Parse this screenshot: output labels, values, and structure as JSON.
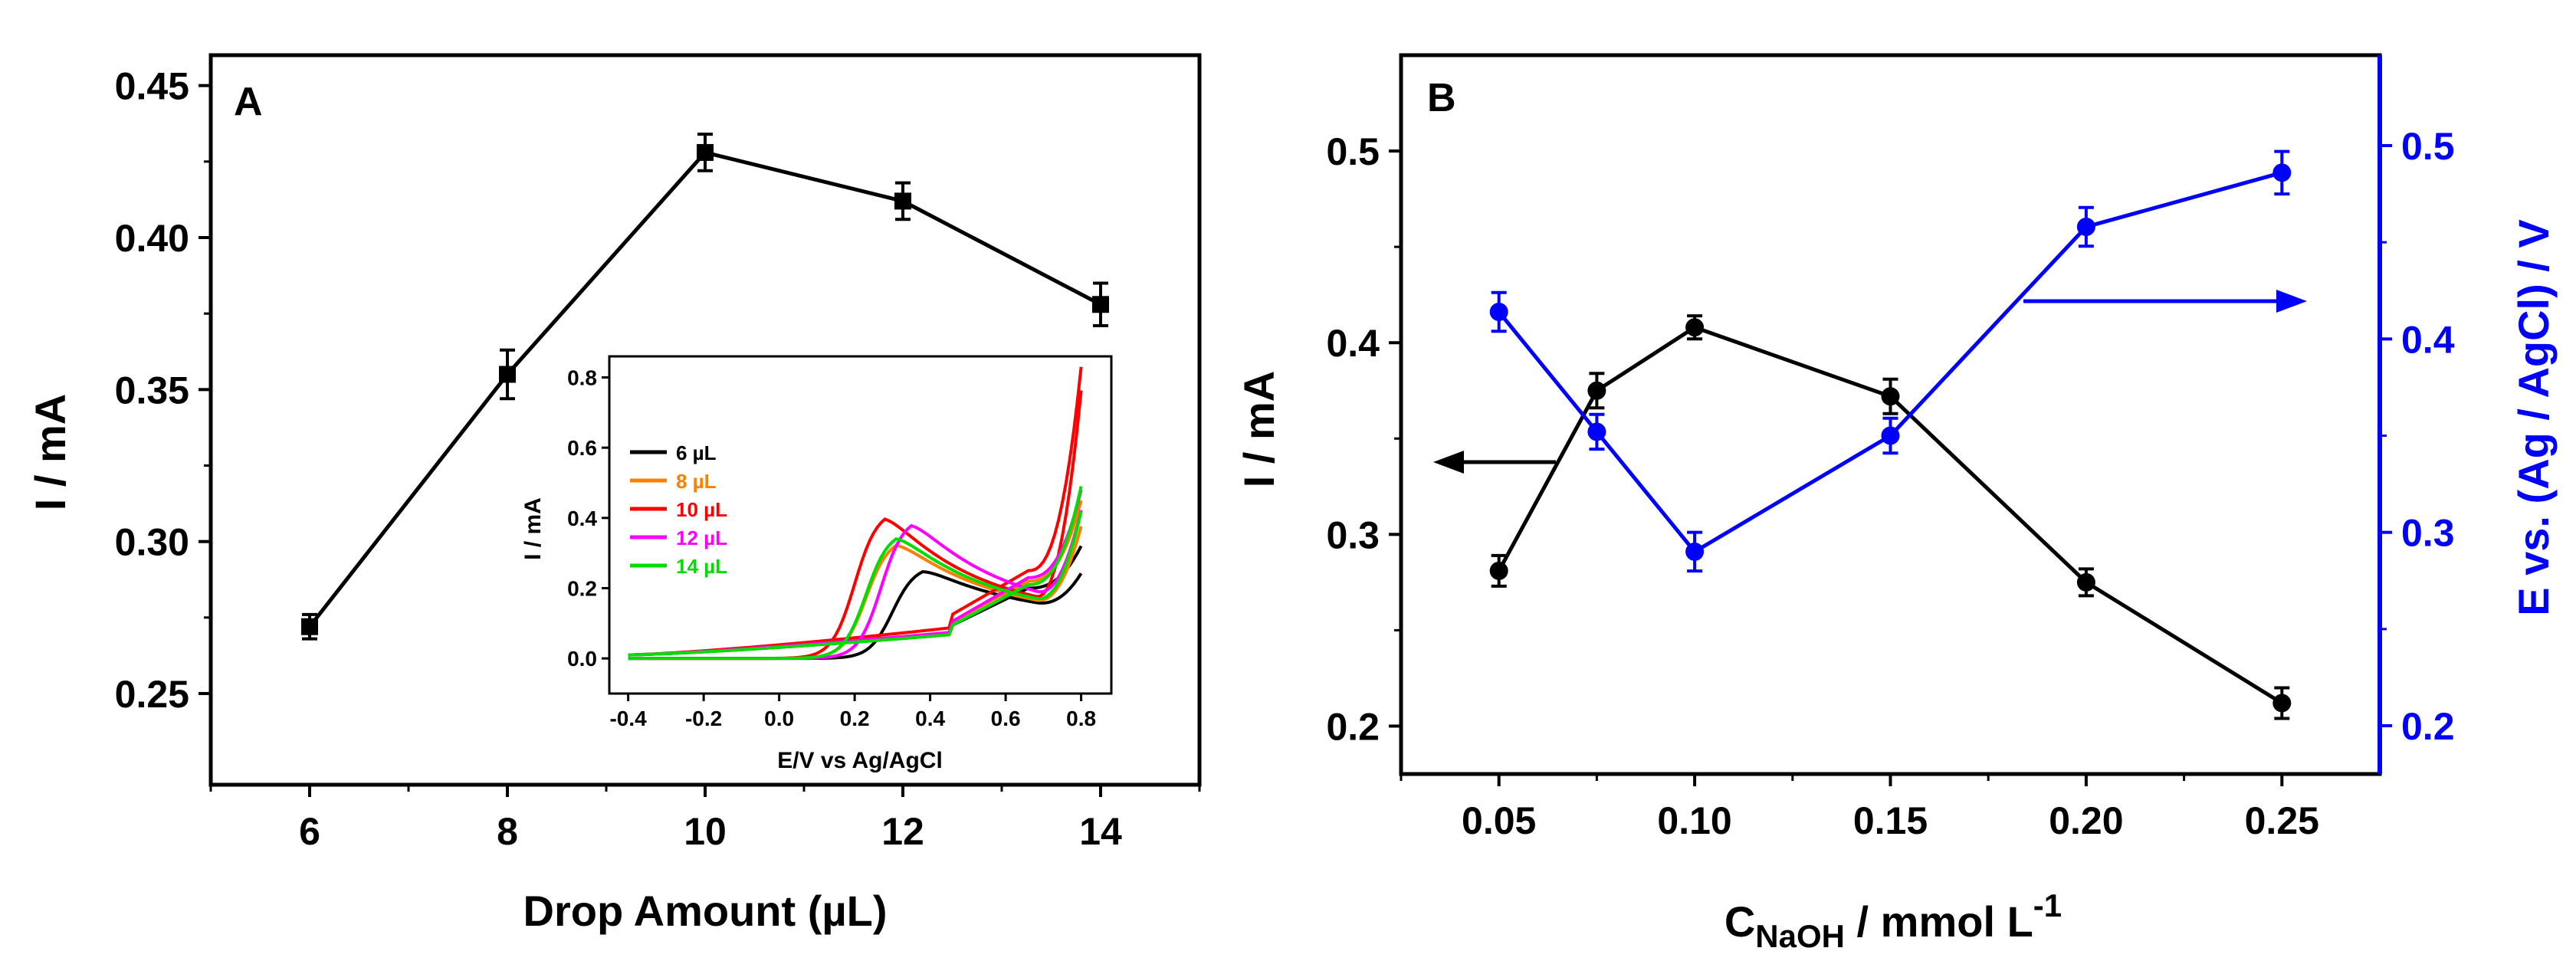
{
  "chart_data": [
    {
      "panel": "A",
      "type": "line",
      "xlabel": "Drop Amount (µL)",
      "ylabel": "I / mA",
      "xlim": [
        5,
        15
      ],
      "ylim": [
        0.22,
        0.46
      ],
      "xticks": [
        6,
        8,
        10,
        12,
        14
      ],
      "yticks": [
        0.25,
        0.3,
        0.35,
        0.4,
        0.45
      ],
      "ytick_labels": [
        "0.25",
        "0.30",
        "0.35",
        "0.40",
        "0.45"
      ],
      "series": [
        {
          "name": "I",
          "color": "#000000",
          "marker": "square",
          "x": [
            6,
            8,
            10,
            12,
            14
          ],
          "values": [
            0.272,
            0.355,
            0.428,
            0.412,
            0.378
          ],
          "err": [
            0.004,
            0.008,
            0.006,
            0.006,
            0.007
          ]
        }
      ],
      "inset": {
        "type": "line",
        "xlabel": "E/V vs Ag/AgCl",
        "ylabel": "I / mA",
        "xlim": [
          -0.45,
          0.88
        ],
        "ylim": [
          -0.1,
          0.86
        ],
        "xticks": [
          -0.4,
          -0.2,
          0.0,
          0.2,
          0.4,
          0.6,
          0.8
        ],
        "xtick_labels": [
          "-0.4",
          "-0.2",
          "0.0",
          "0.2",
          "0.4",
          "0.6",
          "0.8"
        ],
        "yticks": [
          0.0,
          0.2,
          0.4,
          0.6,
          0.8
        ],
        "ytick_labels": [
          "0.0",
          "0.2",
          "0.4",
          "0.6",
          "0.8"
        ],
        "legend": [
          {
            "label": "6 µL",
            "color": "#000000"
          },
          {
            "label": "8 µL",
            "color": "#ff7f00"
          },
          {
            "label": "10 µL",
            "color": "#ff0000"
          },
          {
            "label": "12 µL",
            "color": "#ff00ff"
          },
          {
            "label": "14 µL",
            "color": "#00dd00"
          }
        ],
        "curves": [
          {
            "name": "6 µL",
            "color": "#000000",
            "peak_E": 0.38,
            "peak_I": 0.27,
            "base": 0.09,
            "anodic_end": 0.32,
            "cathodic_min": 0.2
          },
          {
            "name": "8 µL",
            "color": "#ff7f00",
            "peak_E": 0.31,
            "peak_I": 0.35,
            "base": 0.1,
            "anodic_end": 0.45,
            "cathodic_min": 0.22
          },
          {
            "name": "10 µL",
            "color": "#ff0000",
            "peak_E": 0.28,
            "peak_I": 0.43,
            "base": 0.12,
            "anodic_end": 0.83,
            "cathodic_min": 0.25
          },
          {
            "name": "12 µL",
            "color": "#ff00ff",
            "peak_E": 0.35,
            "peak_I": 0.41,
            "base": 0.1,
            "anodic_end": 0.48,
            "cathodic_min": 0.23
          },
          {
            "name": "14 µL",
            "color": "#00dd00",
            "peak_E": 0.31,
            "peak_I": 0.37,
            "base": 0.09,
            "anodic_end": 0.49,
            "cathodic_min": 0.21
          }
        ]
      }
    },
    {
      "panel": "B",
      "type": "line",
      "xlabel_main": "C",
      "xlabel_sub": "NaOH",
      "xlabel_rest": " / mmol L",
      "xlabel_sup": "-1",
      "ylabel": "I / mA",
      "y2label": "E vs. (Ag / AgCl) / V",
      "xlim": [
        0.025,
        0.275
      ],
      "ylim": [
        0.175,
        0.55
      ],
      "y2lim": [
        0.18,
        0.55
      ],
      "xticks": [
        0.05,
        0.1,
        0.15,
        0.2,
        0.25
      ],
      "xtick_labels": [
        "0.05",
        "0.10",
        "0.15",
        "0.20",
        "0.25"
      ],
      "yticks": [
        0.2,
        0.3,
        0.4,
        0.5
      ],
      "ytick_labels": [
        "0.2",
        "0.3",
        "0.4",
        "0.5"
      ],
      "y2ticks": [
        0.2,
        0.3,
        0.4,
        0.5
      ],
      "y2tick_labels": [
        "0.2",
        "0.3",
        "0.4",
        "0.5"
      ],
      "series": [
        {
          "name": "I",
          "axis": "left",
          "color": "#000000",
          "marker": "circle",
          "x": [
            0.05,
            0.075,
            0.1,
            0.15,
            0.2,
            0.25
          ],
          "values": [
            0.281,
            0.375,
            0.408,
            0.372,
            0.275,
            0.212
          ],
          "err": [
            0.008,
            0.009,
            0.006,
            0.009,
            0.007,
            0.008
          ]
        },
        {
          "name": "E",
          "axis": "right",
          "color": "#0000ff",
          "marker": "circle",
          "x": [
            0.05,
            0.075,
            0.1,
            0.15,
            0.2,
            0.25
          ],
          "values": [
            0.414,
            0.352,
            0.29,
            0.35,
            0.458,
            0.486
          ],
          "err": [
            0.01,
            0.009,
            0.01,
            0.009,
            0.01,
            0.011
          ]
        }
      ]
    }
  ],
  "panel_labels": {
    "a": "A",
    "b": "B"
  }
}
